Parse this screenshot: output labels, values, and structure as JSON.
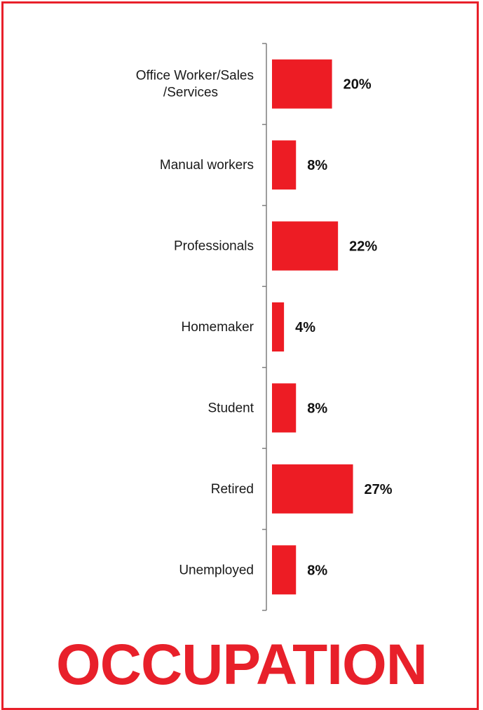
{
  "title": "OCCUPATION",
  "colors": {
    "bar": "#ED1C24",
    "frame": "#E8202A",
    "title": "#E8202A",
    "axis": "#7F7F7F"
  },
  "chart_data": {
    "type": "bar",
    "orientation": "horizontal",
    "categories": [
      [
        "Office Worker/Sales",
        "/Services"
      ],
      [
        "Manual workers"
      ],
      [
        "Professionals"
      ],
      [
        "Homemaker"
      ],
      [
        "Student"
      ],
      [
        "Retired"
      ],
      [
        "Unemployed"
      ]
    ],
    "values": [
      20,
      8,
      22,
      4,
      8,
      27,
      8
    ],
    "value_labels": [
      "20%",
      "8%",
      "22%",
      "4%",
      "8%",
      "27%",
      "8%"
    ],
    "unit": "%",
    "xlim": [
      0,
      100
    ],
    "grid": false,
    "legend": "none"
  }
}
